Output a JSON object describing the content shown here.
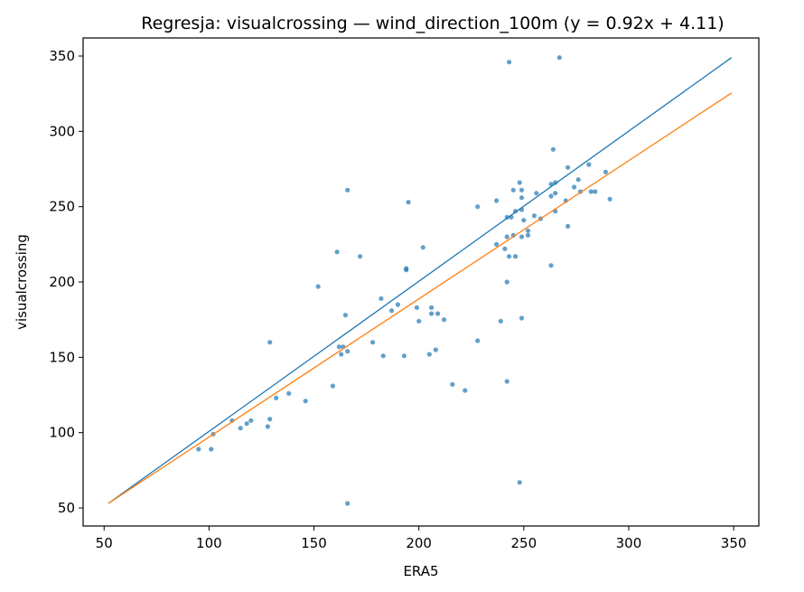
{
  "chart_data": {
    "type": "scatter",
    "title": "Regresja: visualcrossing — wind_direction_100m (y = 0.92x + 4.11)",
    "xlabel": "ERA5",
    "ylabel": "visualcrossing",
    "xlim": [
      40,
      362
    ],
    "ylim": [
      38,
      362
    ],
    "xticks": [
      50,
      100,
      150,
      200,
      250,
      300,
      350
    ],
    "yticks": [
      50,
      100,
      150,
      200,
      250,
      300,
      350
    ],
    "grid": false,
    "colors": {
      "points": "#1f77b4",
      "identity": "#1f77b4",
      "regression": "#ff7f0e"
    },
    "series": [
      {
        "type": "scatter",
        "points": [
          [
            95,
            89
          ],
          [
            101,
            89
          ],
          [
            102,
            99
          ],
          [
            111,
            108
          ],
          [
            115,
            103
          ],
          [
            118,
            106
          ],
          [
            120,
            108
          ],
          [
            128,
            104
          ],
          [
            129,
            109
          ],
          [
            129,
            160
          ],
          [
            132,
            123
          ],
          [
            138,
            126
          ],
          [
            146,
            121
          ],
          [
            152,
            197
          ],
          [
            159,
            131
          ],
          [
            161,
            220
          ],
          [
            162,
            157
          ],
          [
            163,
            152
          ],
          [
            164,
            157
          ],
          [
            165,
            178
          ],
          [
            166,
            154
          ],
          [
            166,
            261
          ],
          [
            166,
            53
          ],
          [
            172,
            217
          ],
          [
            178,
            160
          ],
          [
            182,
            189
          ],
          [
            183,
            151
          ],
          [
            187,
            181
          ],
          [
            190,
            185
          ],
          [
            193,
            151
          ],
          [
            194,
            208
          ],
          [
            194,
            209
          ],
          [
            195,
            253
          ],
          [
            199,
            183
          ],
          [
            200,
            174
          ],
          [
            202,
            223
          ],
          [
            205,
            152
          ],
          [
            206,
            183
          ],
          [
            206,
            179
          ],
          [
            208,
            155
          ],
          [
            209,
            179
          ],
          [
            212,
            175
          ],
          [
            216,
            132
          ],
          [
            222,
            128
          ],
          [
            228,
            161
          ],
          [
            228,
            250
          ],
          [
            237,
            225
          ],
          [
            237,
            254
          ],
          [
            239,
            174
          ],
          [
            241,
            222
          ],
          [
            242,
            134
          ],
          [
            242,
            200
          ],
          [
            242,
            230
          ],
          [
            242,
            243
          ],
          [
            243,
            217
          ],
          [
            243,
            346
          ],
          [
            244,
            243
          ],
          [
            245,
            261
          ],
          [
            245,
            231
          ],
          [
            246,
            217
          ],
          [
            246,
            247
          ],
          [
            248,
            266
          ],
          [
            248,
            67
          ],
          [
            249,
            261
          ],
          [
            249,
            256
          ],
          [
            249,
            248
          ],
          [
            249,
            230
          ],
          [
            249,
            176
          ],
          [
            250,
            241
          ],
          [
            252,
            234
          ],
          [
            252,
            231
          ],
          [
            255,
            244
          ],
          [
            256,
            259
          ],
          [
            258,
            242
          ],
          [
            263,
            265
          ],
          [
            263,
            257
          ],
          [
            263,
            211
          ],
          [
            264,
            288
          ],
          [
            265,
            266
          ],
          [
            265,
            247
          ],
          [
            265,
            259
          ],
          [
            267,
            349
          ],
          [
            270,
            254
          ],
          [
            271,
            237
          ],
          [
            271,
            276
          ],
          [
            274,
            263
          ],
          [
            276,
            268
          ],
          [
            277,
            260
          ],
          [
            281,
            278
          ],
          [
            282,
            260
          ],
          [
            284,
            260
          ],
          [
            289,
            273
          ],
          [
            291,
            255
          ]
        ]
      },
      {
        "type": "line",
        "points": [
          [
            52,
            53
          ],
          [
            349,
            349
          ]
        ]
      },
      {
        "type": "line",
        "points": [
          [
            52,
            53
          ],
          [
            349,
            325.5
          ]
        ]
      }
    ]
  }
}
